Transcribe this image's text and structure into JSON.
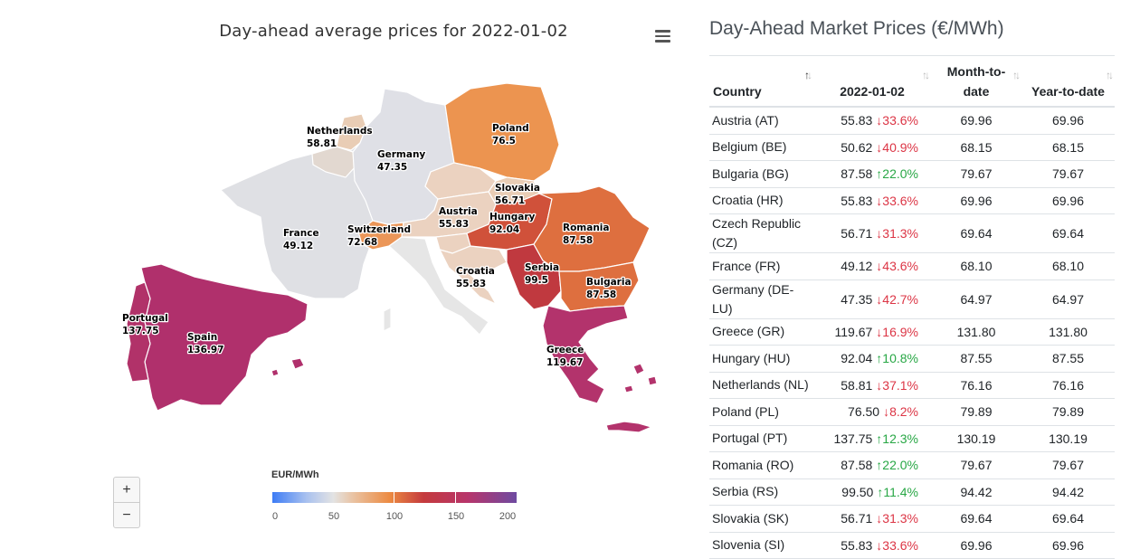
{
  "map": {
    "title": "Day-ahead average prices for 2022-01-02",
    "legend_title": "EUR/MWh",
    "legend_ticks": [
      "0",
      "50",
      "100",
      "150",
      "200"
    ],
    "zoom_in": "+",
    "zoom_out": "−",
    "labels": [
      {
        "id": "netherlands",
        "name": "Netherlands",
        "value": "58.81"
      },
      {
        "id": "germany",
        "name": "Germany",
        "value": "47.35"
      },
      {
        "id": "poland",
        "name": "Poland",
        "value": "76.5"
      },
      {
        "id": "slovakia",
        "name": "Slovakia",
        "value": "56.71"
      },
      {
        "id": "austria",
        "name": "Austria",
        "value": "55.83"
      },
      {
        "id": "hungary",
        "name": "Hungary",
        "value": "92.04"
      },
      {
        "id": "romania",
        "name": "Romania",
        "value": "87.58"
      },
      {
        "id": "france",
        "name": "France",
        "value": "49.12"
      },
      {
        "id": "switzerland",
        "name": "Switzerland",
        "value": "72.68"
      },
      {
        "id": "croatia",
        "name": "Croatia",
        "value": "55.83"
      },
      {
        "id": "serbia",
        "name": "Serbia",
        "value": "99.5"
      },
      {
        "id": "bulgaria",
        "name": "Bulgaria",
        "value": "87.58"
      },
      {
        "id": "portugal",
        "name": "Portugal",
        "value": "137.75"
      },
      {
        "id": "spain",
        "name": "Spain",
        "value": "136.97"
      },
      {
        "id": "greece",
        "name": "Greece",
        "value": "119.67"
      }
    ],
    "colors": {
      "low": "#3d7cf5",
      "mid": "#e3e3e3",
      "orange": "#ec9450",
      "red": "#c8433d",
      "magenta": "#b3336c",
      "high": "#6e4aa1"
    }
  },
  "table": {
    "title": "Day-Ahead Market Prices (€/MWh)",
    "headers": {
      "country": "Country",
      "day": "2022-01-02",
      "month": "Month-to-date",
      "year": "Year-to-date"
    },
    "rows": [
      {
        "country": "Austria (AT)",
        "price": "55.83",
        "change": "33.6%",
        "dir": "down",
        "mtd": "69.96",
        "ytd": "69.96"
      },
      {
        "country": "Belgium (BE)",
        "price": "50.62",
        "change": "40.9%",
        "dir": "down",
        "mtd": "68.15",
        "ytd": "68.15"
      },
      {
        "country": "Bulgaria (BG)",
        "price": "87.58",
        "change": "22.0%",
        "dir": "up",
        "mtd": "79.67",
        "ytd": "79.67"
      },
      {
        "country": "Croatia (HR)",
        "price": "55.83",
        "change": "33.6%",
        "dir": "down",
        "mtd": "69.96",
        "ytd": "69.96"
      },
      {
        "country": "Czech Republic (CZ)",
        "price": "56.71",
        "change": "31.3%",
        "dir": "down",
        "mtd": "69.64",
        "ytd": "69.64"
      },
      {
        "country": "France (FR)",
        "price": "49.12",
        "change": "43.6%",
        "dir": "down",
        "mtd": "68.10",
        "ytd": "68.10"
      },
      {
        "country": "Germany (DE-LU)",
        "price": "47.35",
        "change": "42.7%",
        "dir": "down",
        "mtd": "64.97",
        "ytd": "64.97"
      },
      {
        "country": "Greece (GR)",
        "price": "119.67",
        "change": "16.9%",
        "dir": "down",
        "mtd": "131.80",
        "ytd": "131.80"
      },
      {
        "country": "Hungary (HU)",
        "price": "92.04",
        "change": "10.8%",
        "dir": "up",
        "mtd": "87.55",
        "ytd": "87.55"
      },
      {
        "country": "Netherlands (NL)",
        "price": "58.81",
        "change": "37.1%",
        "dir": "down",
        "mtd": "76.16",
        "ytd": "76.16"
      },
      {
        "country": "Poland (PL)",
        "price": "76.50",
        "change": "8.2%",
        "dir": "down",
        "mtd": "79.89",
        "ytd": "79.89"
      },
      {
        "country": "Portugal (PT)",
        "price": "137.75",
        "change": "12.3%",
        "dir": "up",
        "mtd": "130.19",
        "ytd": "130.19"
      },
      {
        "country": "Romania (RO)",
        "price": "87.58",
        "change": "22.0%",
        "dir": "up",
        "mtd": "79.67",
        "ytd": "79.67"
      },
      {
        "country": "Serbia (RS)",
        "price": "99.50",
        "change": "11.4%",
        "dir": "up",
        "mtd": "94.42",
        "ytd": "94.42"
      },
      {
        "country": "Slovakia (SK)",
        "price": "56.71",
        "change": "31.3%",
        "dir": "down",
        "mtd": "69.64",
        "ytd": "69.64"
      },
      {
        "country": "Slovenia (SI)",
        "price": "55.83",
        "change": "33.6%",
        "dir": "down",
        "mtd": "69.96",
        "ytd": "69.96"
      }
    ]
  }
}
